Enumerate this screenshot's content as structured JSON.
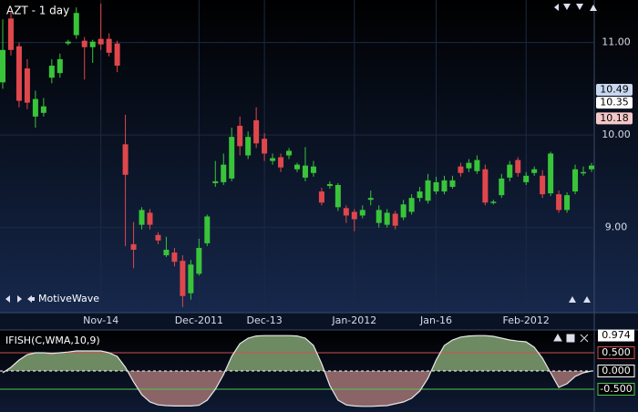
{
  "chart_data": [
    {
      "type": "candlestick",
      "title": "AZT - 1 day",
      "watermark": "MotiveWave",
      "categories": [
        null,
        null,
        null,
        null,
        null,
        null,
        null,
        null,
        null,
        null,
        null,
        null,
        "Nov-14",
        null,
        null,
        null,
        null,
        null,
        null,
        null,
        null,
        null,
        null,
        null,
        "Dec-2011",
        null,
        null,
        null,
        null,
        null,
        null,
        null,
        "Dec-13",
        null,
        null,
        null,
        null,
        null,
        null,
        null,
        null,
        null,
        null,
        "Jan-2012",
        null,
        null,
        null,
        null,
        null,
        null,
        null,
        null,
        null,
        "Jan-16",
        null,
        null,
        null,
        null,
        null,
        null,
        null,
        null,
        null,
        null,
        "Feb-2012",
        null,
        null,
        null,
        null,
        null,
        null,
        null,
        null
      ],
      "open": [
        10.57,
        11.26,
        10.96,
        10.72,
        10.2,
        10.24,
        10.62,
        10.67,
        10.99,
        11.08,
        11.02,
        10.95,
        11.04,
        11.04,
        10.99,
        9.9,
        8.82,
        9.03,
        9.16,
        8.92,
        8.7,
        8.73,
        8.64,
        8.29,
        8.5,
        8.83,
        9.48,
        9.49,
        9.53,
        10.1,
        9.78,
        10.16,
        9.96,
        9.72,
        9.76,
        9.78,
        9.63,
        9.54,
        9.59,
        9.39,
        9.45,
        9.22,
        9.21,
        9.17,
        9.13,
        9.3,
        9.05,
        9.03,
        9.15,
        9.11,
        9.17,
        9.32,
        9.29,
        9.39,
        9.39,
        9.44,
        9.66,
        9.64,
        9.61,
        9.63,
        9.27,
        9.35,
        9.54,
        9.73,
        9.49,
        9.59,
        9.56,
        9.37,
        9.36,
        9.19,
        9.39,
        9.59,
        9.63
      ],
      "high": [
        11.25,
        11.34,
        11.0,
        10.82,
        10.48,
        10.4,
        10.82,
        10.88,
        11.03,
        11.38,
        11.06,
        11.03,
        11.42,
        11.1,
        11.02,
        10.22,
        9.06,
        9.22,
        9.2,
        8.95,
        8.9,
        8.78,
        8.7,
        8.65,
        8.88,
        9.14,
        9.72,
        9.8,
        10.08,
        10.2,
        10.04,
        10.3,
        10.02,
        9.8,
        9.8,
        9.86,
        9.7,
        9.87,
        9.72,
        9.43,
        9.5,
        9.48,
        9.24,
        9.2,
        9.24,
        9.4,
        9.24,
        9.2,
        9.18,
        9.3,
        9.36,
        9.44,
        9.58,
        9.55,
        9.56,
        9.56,
        9.7,
        9.74,
        9.78,
        9.68,
        9.3,
        9.58,
        9.72,
        9.76,
        9.6,
        9.66,
        9.62,
        9.82,
        9.4,
        9.38,
        9.68,
        9.66,
        9.7
      ],
      "low": [
        10.5,
        10.86,
        10.3,
        10.28,
        10.08,
        10.2,
        10.56,
        10.62,
        10.97,
        11.04,
        10.6,
        10.78,
        10.92,
        10.85,
        10.68,
        8.8,
        8.56,
        8.98,
        8.98,
        8.82,
        8.68,
        8.58,
        8.14,
        8.22,
        8.48,
        8.8,
        9.44,
        9.46,
        9.5,
        9.78,
        9.74,
        9.86,
        9.72,
        9.68,
        9.6,
        9.74,
        9.6,
        9.5,
        9.55,
        9.24,
        9.42,
        9.18,
        9.05,
        8.96,
        9.1,
        9.24,
        9.0,
        9.0,
        8.98,
        9.08,
        9.14,
        9.28,
        9.26,
        9.36,
        9.36,
        9.42,
        9.55,
        9.6,
        9.58,
        9.24,
        9.25,
        9.32,
        9.5,
        9.55,
        9.46,
        9.56,
        9.32,
        9.34,
        9.16,
        9.16,
        9.36,
        9.56,
        9.6
      ],
      "close": [
        10.92,
        10.92,
        10.37,
        10.35,
        10.39,
        10.31,
        10.75,
        10.82,
        11.01,
        11.32,
        10.95,
        11.01,
        10.98,
        10.89,
        10.75,
        9.57,
        8.76,
        9.19,
        9.03,
        8.86,
        8.76,
        8.63,
        8.26,
        8.6,
        8.78,
        9.12,
        9.5,
        9.68,
        9.98,
        9.88,
        9.98,
        9.91,
        9.8,
        9.75,
        9.65,
        9.83,
        9.68,
        9.67,
        9.66,
        9.27,
        9.47,
        9.46,
        9.13,
        9.09,
        9.19,
        9.32,
        9.19,
        9.16,
        9.02,
        9.25,
        9.32,
        9.39,
        9.51,
        9.49,
        9.51,
        9.51,
        9.59,
        9.7,
        9.73,
        9.27,
        9.28,
        9.53,
        9.68,
        9.59,
        9.56,
        9.63,
        9.36,
        9.8,
        9.19,
        9.35,
        9.63,
        9.6,
        9.67
      ],
      "up_color": "#39c43a",
      "down_color": "#e0474c",
      "ylim": [
        8.09,
        11.46
      ],
      "yticks": [
        {
          "value": 9,
          "label": "9.00"
        },
        {
          "value": 10,
          "label": "10.00"
        },
        {
          "value": 11,
          "label": "11.00"
        }
      ],
      "price_labels": [
        {
          "value": 10.49,
          "label": "10.49",
          "color": "#c8d8f0"
        },
        {
          "value": 10.35,
          "label": "10.35",
          "color": "#ffffff"
        },
        {
          "value": 10.18,
          "label": "10.18",
          "color": "#f4c8c8"
        }
      ],
      "grid": true
    },
    {
      "type": "area",
      "title": "IFISH(C,WMA,10,9)",
      "values": [
        -0.05,
        0.1,
        0.3,
        0.45,
        0.5,
        0.5,
        0.48,
        0.5,
        0.52,
        0.55,
        0.55,
        0.55,
        0.55,
        0.5,
        0.4,
        0.1,
        -0.3,
        -0.65,
        -0.85,
        -0.93,
        -0.95,
        -0.96,
        -0.96,
        -0.96,
        -0.94,
        -0.8,
        -0.5,
        -0.1,
        0.4,
        0.75,
        0.9,
        0.96,
        0.97,
        0.97,
        0.97,
        0.97,
        0.96,
        0.9,
        0.7,
        0.2,
        -0.4,
        -0.8,
        -0.93,
        -0.96,
        -0.97,
        -0.97,
        -0.96,
        -0.95,
        -0.9,
        -0.85,
        -0.75,
        -0.55,
        -0.2,
        0.3,
        0.7,
        0.85,
        0.93,
        0.96,
        0.97,
        0.97,
        0.95,
        0.9,
        0.85,
        0.82,
        0.8,
        0.65,
        0.35,
        -0.05,
        -0.45,
        -0.35,
        -0.15,
        -0.05,
        0.0
      ],
      "positive_color": "#6e8a62",
      "negative_color": "#8a6466",
      "line_color": "#e8e8e8",
      "ylim": [
        -1.125,
        1.125
      ],
      "levels": [
        {
          "value": 0.5,
          "label": "0.500",
          "color": "#d05050"
        },
        {
          "value": 0,
          "label": "0.000",
          "color": "#ffffff"
        },
        {
          "value": -0.5,
          "label": "-0.500",
          "color": "#50c850"
        }
      ],
      "marker": {
        "value": 0.974,
        "label": "0.974"
      }
    }
  ]
}
